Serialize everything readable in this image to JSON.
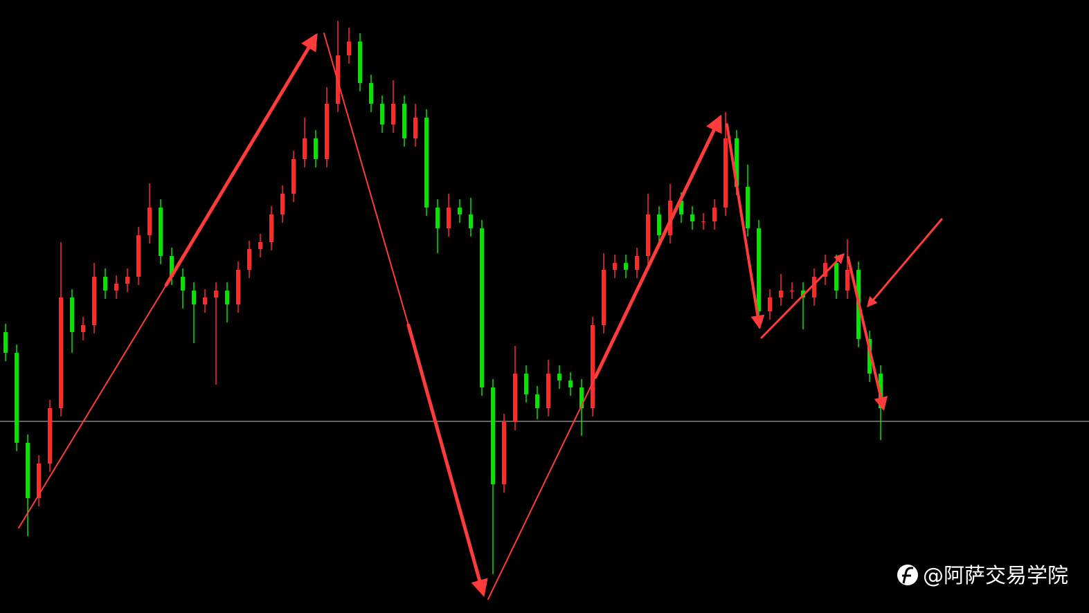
{
  "chart_data": {
    "type": "candlestick",
    "watermark": "@阿萨交易学院",
    "up_color": "#ff2a2a",
    "down_color": "#00e600",
    "hline": 277,
    "hline_color": "#c8c8c8",
    "ylim": [
      0,
      886
    ],
    "open": [
      406,
      376,
      246,
      166,
      216,
      296,
      456,
      406,
      416,
      486,
      466,
      476,
      486,
      546,
      586,
      516,
      486,
      466,
      446,
      456,
      466,
      446,
      496,
      526,
      536,
      576,
      606,
      656,
      686,
      656,
      736,
      806,
      826,
      766,
      736,
      706,
      736,
      686,
      716,
      586,
      556,
      586,
      576,
      556,
      326,
      186,
      276,
      346,
      316,
      296,
      346,
      336,
      326,
      296,
      416,
      496,
      506,
      496,
      516,
      576,
      546,
      596,
      576,
      566,
      566,
      586,
      686,
      616,
      556,
      436,
      456,
      466,
      466,
      456,
      486,
      506,
      466,
      496,
      396,
      346
    ],
    "high": [
      418,
      388,
      258,
      228,
      308,
      536,
      468,
      428,
      506,
      498,
      488,
      498,
      558,
      621,
      598,
      528,
      498,
      478,
      468,
      478,
      478,
      508,
      538,
      548,
      588,
      618,
      668,
      716,
      698,
      760,
      856,
      846,
      838,
      778,
      748,
      770,
      748,
      736,
      728,
      598,
      606,
      598,
      600,
      568,
      338,
      288,
      386,
      358,
      328,
      366,
      358,
      348,
      338,
      428,
      520,
      518,
      518,
      528,
      606,
      588,
      620,
      608,
      588,
      578,
      598,
      724,
      698,
      648,
      568,
      468,
      490,
      478,
      478,
      498,
      518,
      518,
      540,
      508,
      408,
      358
    ],
    "low": [
      364,
      234,
      111,
      154,
      204,
      284,
      376,
      394,
      404,
      454,
      454,
      464,
      474,
      534,
      504,
      474,
      440,
      390,
      434,
      330,
      420,
      434,
      484,
      514,
      524,
      564,
      594,
      644,
      644,
      644,
      724,
      794,
      754,
      724,
      694,
      694,
      674,
      674,
      574,
      520,
      544,
      564,
      544,
      314,
      56,
      174,
      264,
      304,
      280,
      284,
      324,
      314,
      256,
      284,
      404,
      484,
      484,
      484,
      504,
      534,
      534,
      564,
      554,
      554,
      554,
      574,
      604,
      544,
      424,
      424,
      444,
      454,
      410,
      444,
      474,
      454,
      454,
      384,
      334,
      250
    ],
    "close": [
      376,
      246,
      166,
      216,
      296,
      456,
      406,
      416,
      486,
      466,
      476,
      486,
      546,
      586,
      516,
      486,
      466,
      446,
      456,
      466,
      446,
      496,
      526,
      536,
      576,
      606,
      656,
      686,
      656,
      736,
      806,
      826,
      766,
      736,
      706,
      736,
      686,
      716,
      586,
      556,
      586,
      576,
      556,
      326,
      186,
      276,
      346,
      316,
      296,
      346,
      336,
      326,
      296,
      416,
      496,
      506,
      496,
      516,
      576,
      546,
      596,
      576,
      566,
      566,
      586,
      686,
      616,
      556,
      436,
      456,
      466,
      466,
      456,
      486,
      506,
      466,
      496,
      396,
      346,
      296
    ]
  }
}
